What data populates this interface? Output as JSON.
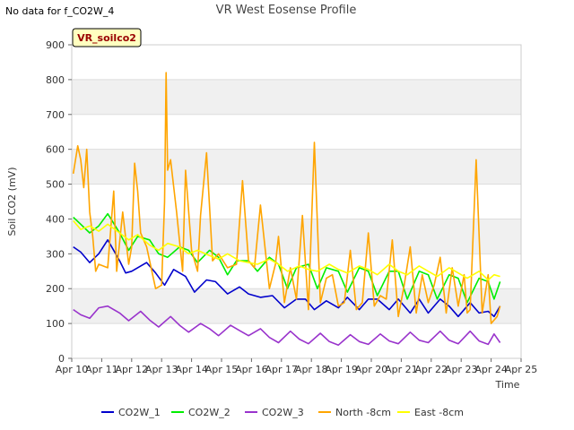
{
  "chart_data": {
    "type": "line",
    "title": "VR West Eosense Profile",
    "no_data_note": "No data for f_CO2W_4",
    "site_label": "VR_soilco2",
    "xlabel": "Time",
    "ylabel": "Soil CO2 (mV)",
    "ylim": [
      0,
      900
    ],
    "yticks": [
      0,
      100,
      200,
      300,
      400,
      500,
      600,
      700,
      800,
      900
    ],
    "xlim": [
      10,
      25
    ],
    "xticks": [
      10,
      11,
      12,
      13,
      14,
      15,
      16,
      17,
      18,
      19,
      20,
      21,
      22,
      23,
      24,
      25
    ],
    "xtick_labels": [
      "Apr 10",
      "Apr 11",
      "Apr 12",
      "Apr 13",
      "Apr 14",
      "Apr 15",
      "Apr 16",
      "Apr 17",
      "Apr 18",
      "Apr 19",
      "Apr 20",
      "Apr 21",
      "Apr 22",
      "Apr 23",
      "Apr 24",
      "Apr 25"
    ],
    "grid": true,
    "legend_position": "bottom",
    "series": [
      {
        "name": "CO2W_1",
        "color": "#0000cc",
        "x": [
          10.05,
          10.3,
          10.6,
          10.9,
          11.2,
          11.6,
          11.8,
          12.0,
          12.5,
          12.8,
          13.1,
          13.4,
          13.8,
          14.1,
          14.5,
          14.8,
          15.2,
          15.6,
          15.9,
          16.3,
          16.7,
          17.1,
          17.5,
          17.8,
          18.1,
          18.5,
          18.9,
          19.2,
          19.6,
          19.9,
          20.2,
          20.6,
          20.9,
          21.3,
          21.6,
          21.9,
          22.3,
          22.6,
          22.9,
          23.3,
          23.6,
          23.9,
          24.1,
          24.3
        ],
        "values": [
          320,
          305,
          275,
          300,
          340,
          280,
          245,
          250,
          275,
          245,
          210,
          255,
          235,
          190,
          225,
          220,
          185,
          205,
          185,
          175,
          180,
          145,
          170,
          170,
          140,
          165,
          145,
          175,
          140,
          170,
          170,
          140,
          170,
          130,
          170,
          130,
          170,
          150,
          120,
          160,
          130,
          135,
          120,
          150
        ]
      },
      {
        "name": "CO2W_2",
        "color": "#00ee00",
        "x": [
          10.05,
          10.3,
          10.6,
          10.9,
          11.2,
          11.6,
          11.9,
          12.2,
          12.6,
          12.9,
          13.2,
          13.6,
          13.9,
          14.2,
          14.6,
          14.9,
          15.2,
          15.5,
          15.9,
          16.2,
          16.6,
          16.9,
          17.2,
          17.5,
          17.9,
          18.2,
          18.5,
          18.9,
          19.2,
          19.6,
          19.9,
          20.2,
          20.6,
          20.9,
          21.2,
          21.6,
          21.9,
          22.2,
          22.6,
          22.9,
          23.2,
          23.6,
          23.9,
          24.1,
          24.3
        ],
        "values": [
          405,
          385,
          360,
          380,
          415,
          360,
          310,
          350,
          340,
          300,
          290,
          320,
          310,
          275,
          310,
          290,
          240,
          280,
          280,
          250,
          290,
          270,
          200,
          260,
          270,
          200,
          260,
          250,
          190,
          260,
          250,
          180,
          250,
          250,
          170,
          250,
          240,
          170,
          240,
          230,
          160,
          230,
          220,
          170,
          220
        ]
      },
      {
        "name": "CO2W_3",
        "color": "#9933cc",
        "x": [
          10.05,
          10.3,
          10.6,
          10.9,
          11.2,
          11.6,
          11.9,
          12.3,
          12.6,
          12.9,
          13.3,
          13.6,
          13.9,
          14.3,
          14.6,
          14.9,
          15.3,
          15.6,
          15.9,
          16.3,
          16.6,
          16.9,
          17.3,
          17.6,
          17.9,
          18.3,
          18.6,
          18.9,
          19.3,
          19.6,
          19.9,
          20.3,
          20.6,
          20.9,
          21.3,
          21.6,
          21.9,
          22.3,
          22.6,
          22.9,
          23.3,
          23.6,
          23.9,
          24.1,
          24.3
        ],
        "values": [
          140,
          125,
          115,
          145,
          150,
          130,
          108,
          135,
          110,
          90,
          120,
          95,
          75,
          100,
          85,
          65,
          95,
          80,
          65,
          85,
          60,
          45,
          78,
          55,
          42,
          72,
          48,
          38,
          68,
          48,
          40,
          70,
          50,
          42,
          75,
          52,
          45,
          78,
          52,
          42,
          78,
          50,
          40,
          70,
          45
        ]
      },
      {
        "name": "North -8cm",
        "color": "#ffa500",
        "x": [
          10.05,
          10.2,
          10.3,
          10.4,
          10.5,
          10.6,
          10.7,
          10.8,
          10.9,
          11.2,
          11.4,
          11.5,
          11.7,
          11.9,
          12.0,
          12.1,
          12.2,
          12.3,
          12.5,
          12.8,
          13.0,
          13.1,
          13.15,
          13.2,
          13.3,
          13.5,
          13.7,
          13.8,
          14.0,
          14.2,
          14.3,
          14.5,
          14.7,
          14.9,
          15.2,
          15.5,
          15.7,
          15.9,
          16.1,
          16.3,
          16.6,
          16.8,
          16.9,
          17.1,
          17.3,
          17.5,
          17.7,
          17.9,
          18.1,
          18.3,
          18.5,
          18.7,
          18.9,
          19.1,
          19.3,
          19.5,
          19.7,
          19.9,
          20.1,
          20.3,
          20.5,
          20.7,
          20.9,
          21.1,
          21.3,
          21.5,
          21.7,
          21.9,
          22.1,
          22.3,
          22.5,
          22.7,
          22.9,
          23.1,
          23.2,
          23.3,
          23.5,
          23.7,
          23.9,
          24.0,
          24.2,
          24.3
        ],
        "values": [
          530,
          610,
          570,
          490,
          600,
          420,
          350,
          250,
          270,
          260,
          480,
          250,
          420,
          270,
          320,
          560,
          480,
          360,
          320,
          200,
          210,
          450,
          820,
          540,
          570,
          420,
          250,
          540,
          310,
          250,
          410,
          590,
          280,
          300,
          260,
          270,
          510,
          280,
          260,
          440,
          200,
          270,
          350,
          160,
          260,
          170,
          410,
          140,
          620,
          160,
          230,
          240,
          150,
          160,
          310,
          140,
          160,
          360,
          150,
          180,
          170,
          340,
          120,
          210,
          320,
          130,
          240,
          160,
          210,
          290,
          130,
          260,
          150,
          240,
          130,
          140,
          570,
          130,
          240,
          100,
          120,
          150
        ]
      },
      {
        "name": "East -8cm",
        "color": "#ffff00",
        "x": [
          10.05,
          10.3,
          10.6,
          10.9,
          11.2,
          11.6,
          11.9,
          12.2,
          12.6,
          12.9,
          13.2,
          13.6,
          13.9,
          14.2,
          14.6,
          14.9,
          15.2,
          15.6,
          15.9,
          16.2,
          16.6,
          16.9,
          17.2,
          17.6,
          17.9,
          18.2,
          18.6,
          18.9,
          19.2,
          19.6,
          19.9,
          20.2,
          20.6,
          20.9,
          21.2,
          21.6,
          21.9,
          22.2,
          22.6,
          22.9,
          23.2,
          23.6,
          23.9,
          24.1,
          24.3
        ],
        "values": [
          395,
          370,
          380,
          365,
          385,
          360,
          340,
          355,
          325,
          310,
          330,
          320,
          300,
          310,
          295,
          285,
          300,
          280,
          275,
          270,
          285,
          270,
          250,
          265,
          255,
          250,
          270,
          255,
          245,
          265,
          255,
          240,
          270,
          250,
          240,
          265,
          250,
          235,
          260,
          245,
          230,
          250,
          225,
          240,
          235
        ]
      }
    ]
  }
}
